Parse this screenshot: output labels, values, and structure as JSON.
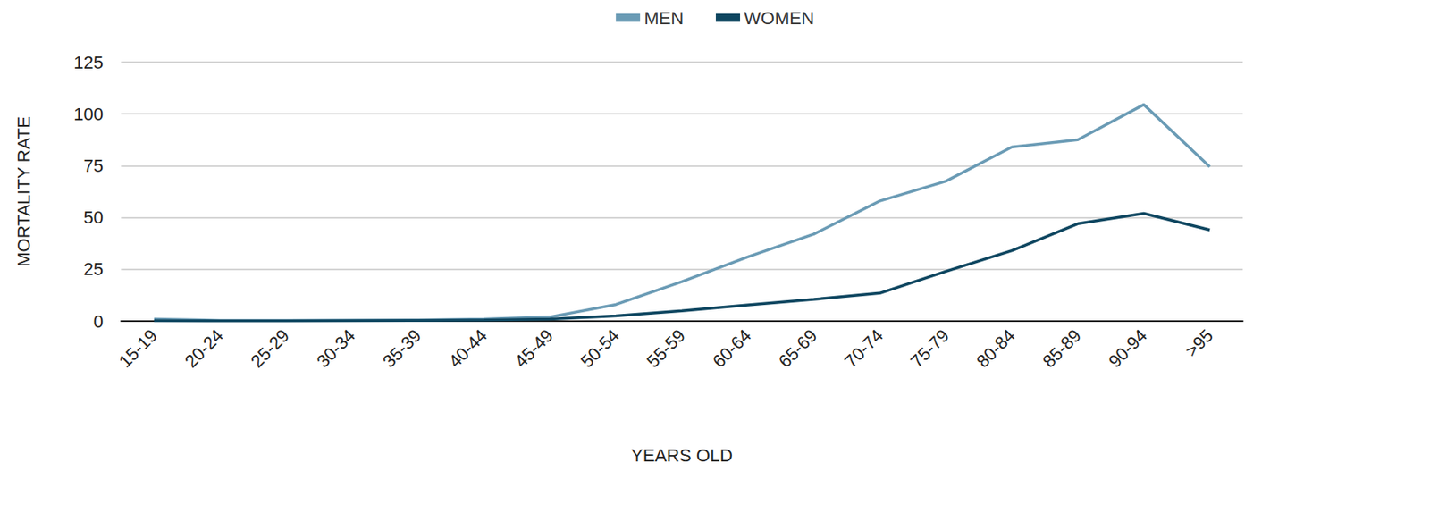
{
  "chart_data": {
    "type": "line",
    "xlabel": "YEARS OLD",
    "ylabel": "MORTALITY RATE",
    "categories": [
      "15-19",
      "20-24",
      "25-29",
      "30-34",
      "35-39",
      "40-44",
      "45-49",
      "50-54",
      "55-59",
      "60-64",
      "65-69",
      "70-74",
      "75-79",
      "80-84",
      "85-89",
      "90-94",
      ">95"
    ],
    "series": [
      {
        "name": "MEN",
        "color": "#6a9bb5",
        "values": [
          1,
          0.3,
          0.3,
          0.4,
          0.5,
          1,
          2,
          8,
          19,
          31,
          42,
          58,
          67.5,
          84,
          87.5,
          104.5,
          74.5
        ]
      },
      {
        "name": "WOMEN",
        "color": "#0e4660",
        "values": [
          0.2,
          0.1,
          0.1,
          0.2,
          0.3,
          0.5,
          1,
          2.5,
          5,
          7.8,
          10.5,
          13.5,
          24,
          34,
          47,
          52,
          44
        ]
      }
    ],
    "ylim": [
      0,
      125
    ],
    "yticks": [
      0,
      25,
      50,
      75,
      100,
      125
    ],
    "grid": true,
    "legend": "top"
  }
}
